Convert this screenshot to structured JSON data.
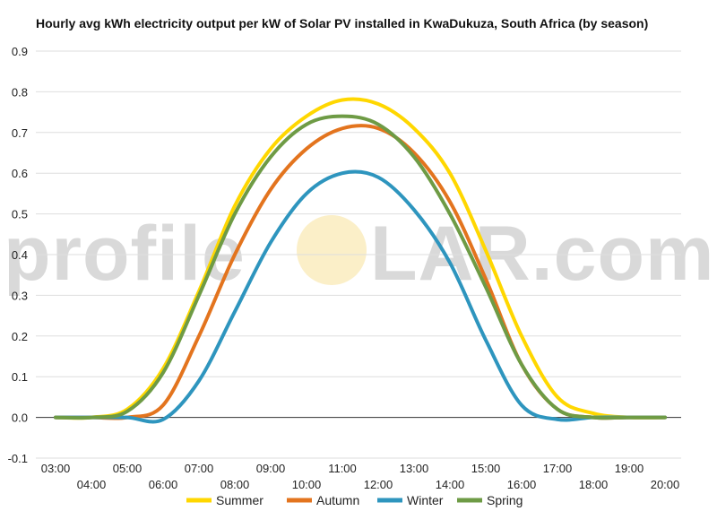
{
  "chart_data": {
    "type": "line",
    "title": "Hourly avg kWh electricity output per kW of Solar PV installed in KwaDukuza, South Africa (by season)",
    "xlabel": "",
    "ylabel": "",
    "x": [
      "03:00",
      "04:00",
      "05:00",
      "06:00",
      "07:00",
      "08:00",
      "09:00",
      "10:00",
      "11:00",
      "12:00",
      "13:00",
      "14:00",
      "15:00",
      "16:00",
      "17:00",
      "18:00",
      "19:00",
      "20:00"
    ],
    "ylim": [
      -0.1,
      0.9
    ],
    "yticks": [
      -0.1,
      0.0,
      0.1,
      0.2,
      0.3,
      0.4,
      0.5,
      0.6,
      0.7,
      0.8,
      0.9
    ],
    "ytick_labels": [
      "-0.1",
      "0.0",
      "0.1",
      "0.2",
      "0.3",
      "0.4",
      "0.5",
      "0.6",
      "0.7",
      "0.8",
      "0.9"
    ],
    "grid": true,
    "legend_position": "bottom",
    "series": [
      {
        "name": "Summer",
        "color": "#ffd700",
        "values": [
          0.0,
          0.0,
          0.02,
          0.12,
          0.31,
          0.52,
          0.66,
          0.74,
          0.78,
          0.77,
          0.71,
          0.6,
          0.41,
          0.2,
          0.05,
          0.01,
          0.0,
          0.0
        ]
      },
      {
        "name": "Autumn",
        "color": "#e3741e",
        "values": [
          0.0,
          0.0,
          0.0,
          0.03,
          0.2,
          0.4,
          0.56,
          0.66,
          0.71,
          0.71,
          0.65,
          0.53,
          0.34,
          0.13,
          0.02,
          0.0,
          0.0,
          0.0
        ]
      },
      {
        "name": "Winter",
        "color": "#2e95be",
        "values": [
          0.0,
          0.0,
          0.0,
          -0.005,
          0.09,
          0.26,
          0.43,
          0.55,
          0.6,
          0.59,
          0.51,
          0.38,
          0.19,
          0.03,
          -0.005,
          0.0,
          0.0,
          0.0
        ]
      },
      {
        "name": "Spring",
        "color": "#6e9b45",
        "values": [
          0.0,
          0.0,
          0.015,
          0.11,
          0.3,
          0.5,
          0.64,
          0.72,
          0.74,
          0.72,
          0.64,
          0.5,
          0.32,
          0.13,
          0.02,
          0.0,
          0.0,
          0.0
        ]
      }
    ]
  },
  "watermark": {
    "text_before": "profile",
    "text_after": "LAR.com"
  }
}
